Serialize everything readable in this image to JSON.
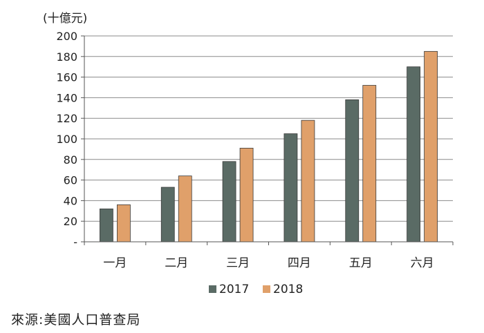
{
  "chart_data": {
    "type": "bar",
    "unit_label": "(十億元)",
    "categories": [
      "一月",
      "二月",
      "三月",
      "四月",
      "五月",
      "六月"
    ],
    "series": [
      {
        "name": "2017",
        "color": "#5a6b65",
        "values": [
          32,
          53,
          78,
          105,
          138,
          170
        ]
      },
      {
        "name": "2018",
        "color": "#e0a06a",
        "values": [
          36,
          64,
          91,
          118,
          152,
          185
        ]
      }
    ],
    "ylim": [
      0,
      200
    ],
    "yticks": [
      0,
      20,
      40,
      60,
      80,
      100,
      120,
      140,
      160,
      180,
      200
    ],
    "ytick_labels": [
      "-",
      "20",
      "40",
      "60",
      "80",
      "100",
      "120",
      "140",
      "160",
      "180",
      "200"
    ],
    "grid": true,
    "legend": "bottom-center"
  },
  "source": "來源:美國人口普查局"
}
